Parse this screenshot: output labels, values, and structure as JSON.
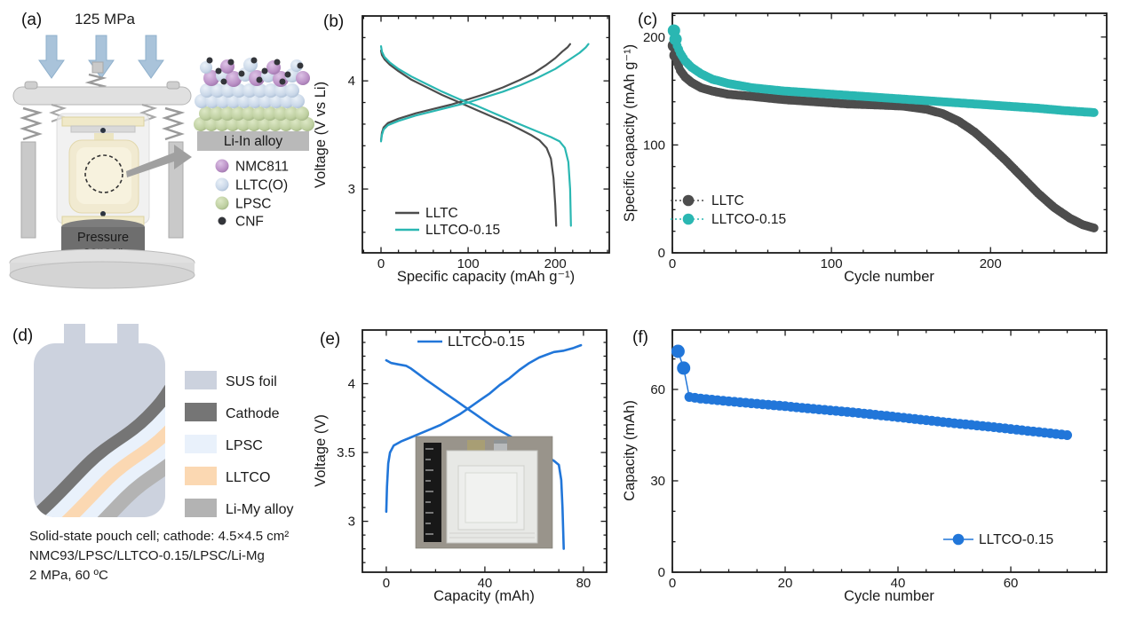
{
  "panels": {
    "a": {
      "label": "(a)",
      "pressure": "125 MPa",
      "sensor_line1": "Pressure",
      "sensor_line2": "sensor",
      "alloy_bar": "Li-In alloy",
      "legend": [
        {
          "label": "NMC811",
          "color": "#b98fc5"
        },
        {
          "label": "LLTC(O)",
          "color": "#c9d7e8"
        },
        {
          "label": "LPSC",
          "color": "#becfa0"
        },
        {
          "label": "CNF",
          "color": "#33353a"
        }
      ]
    },
    "b": {
      "label": "(b)"
    },
    "c": {
      "label": "(c)"
    },
    "d": {
      "label": "(d)",
      "legend": [
        {
          "label": "SUS foil",
          "color": "#ccd2de"
        },
        {
          "label": "Cathode",
          "color": "#757575"
        },
        {
          "label": "LPSC",
          "color": "#e9f1fb"
        },
        {
          "label": "LLTCO",
          "color": "#fbd8b2"
        },
        {
          "label": "Li-My alloy",
          "color": "#b3b3b3"
        }
      ],
      "caption": [
        "Solid-state pouch cell; cathode: 4.5×4.5 cm²",
        "NMC93/LPSC/LLTCO-0.15/LPSC/Li-Mg",
        "2 MPa, 60 ºC"
      ]
    },
    "e": {
      "label": "(e)"
    },
    "f": {
      "label": "(f)"
    }
  },
  "chart_data": {
    "b": {
      "type": "line",
      "xlabel": "Specific capacity (mAh g⁻¹)",
      "ylabel": "Voltage (V vs Li)",
      "xlim": [
        -21.4,
        262
      ],
      "ylim": [
        2.41,
        4.6
      ],
      "xticks": [
        0,
        100,
        200
      ],
      "yticks": [
        3,
        4
      ],
      "xminor": 20,
      "yminor": 0.2,
      "grid": false,
      "legend_position": "lower-left",
      "legend": [
        "LLTC",
        "LLTCO-0.15"
      ],
      "legend_colors": [
        "#4d4d4d",
        "#2ab7b2"
      ],
      "series": [
        {
          "name": "LLTC charge",
          "color": "#4d4d4d",
          "points": [
            [
              0,
              3.45
            ],
            [
              1,
              3.52
            ],
            [
              3,
              3.57
            ],
            [
              8,
              3.61
            ],
            [
              20,
              3.65
            ],
            [
              40,
              3.7
            ],
            [
              60,
              3.74
            ],
            [
              80,
              3.78
            ],
            [
              100,
              3.83
            ],
            [
              120,
              3.88
            ],
            [
              140,
              3.94
            ],
            [
              160,
              4.01
            ],
            [
              175,
              4.07
            ],
            [
              190,
              4.15
            ],
            [
              200,
              4.21
            ],
            [
              208,
              4.27
            ],
            [
              214,
              4.31
            ],
            [
              217,
              4.34
            ]
          ]
        },
        {
          "name": "LLTC discharge",
          "color": "#4d4d4d",
          "points": [
            [
              0,
              4.28
            ],
            [
              1,
              4.24
            ],
            [
              4,
              4.2
            ],
            [
              10,
              4.15
            ],
            [
              20,
              4.09
            ],
            [
              35,
              4.01
            ],
            [
              50,
              3.95
            ],
            [
              70,
              3.87
            ],
            [
              90,
              3.8
            ],
            [
              110,
              3.73
            ],
            [
              130,
              3.66
            ],
            [
              145,
              3.61
            ],
            [
              160,
              3.55
            ],
            [
              172,
              3.5
            ],
            [
              182,
              3.45
            ],
            [
              190,
              3.38
            ],
            [
              195,
              3.28
            ],
            [
              198,
              3.1
            ],
            [
              200,
              2.85
            ],
            [
              201,
              2.66
            ]
          ]
        },
        {
          "name": "LLTCO-0.15 charge",
          "color": "#2ab7b2",
          "points": [
            [
              0,
              3.44
            ],
            [
              1,
              3.5
            ],
            [
              3,
              3.55
            ],
            [
              8,
              3.59
            ],
            [
              20,
              3.63
            ],
            [
              40,
              3.68
            ],
            [
              60,
              3.72
            ],
            [
              80,
              3.76
            ],
            [
              100,
              3.8
            ],
            [
              120,
              3.85
            ],
            [
              140,
              3.9
            ],
            [
              160,
              3.96
            ],
            [
              180,
              4.03
            ],
            [
              200,
              4.11
            ],
            [
              215,
              4.19
            ],
            [
              228,
              4.26
            ],
            [
              235,
              4.31
            ],
            [
              238,
              4.34
            ]
          ]
        },
        {
          "name": "LLTCO-0.15 discharge",
          "color": "#2ab7b2",
          "points": [
            [
              0,
              4.32
            ],
            [
              1,
              4.27
            ],
            [
              4,
              4.22
            ],
            [
              10,
              4.17
            ],
            [
              20,
              4.11
            ],
            [
              35,
              4.04
            ],
            [
              50,
              3.98
            ],
            [
              70,
              3.9
            ],
            [
              90,
              3.83
            ],
            [
              110,
              3.77
            ],
            [
              130,
              3.7
            ],
            [
              150,
              3.63
            ],
            [
              165,
              3.58
            ],
            [
              180,
              3.53
            ],
            [
              195,
              3.48
            ],
            [
              205,
              3.44
            ],
            [
              211,
              3.38
            ],
            [
              215,
              3.25
            ],
            [
              217,
              3.0
            ],
            [
              218,
              2.66
            ]
          ]
        }
      ]
    },
    "c": {
      "type": "scatter",
      "xlabel": "Cycle number",
      "ylabel": "Specific capacity (mAh g⁻¹)",
      "xlim": [
        0,
        273
      ],
      "ylim": [
        0,
        222
      ],
      "xticks": [
        0,
        100,
        200
      ],
      "yticks": [
        0,
        100,
        200
      ],
      "xminor": 20,
      "yminor": 20,
      "grid": false,
      "legend_position": "lower-left",
      "series": [
        {
          "name": "LLTC",
          "color": "#4d4d4d",
          "marker": 5,
          "marker_first": 7,
          "first_n": 2,
          "anchors": [
            [
              1,
              192
            ],
            [
              2,
              183
            ],
            [
              3,
              176
            ],
            [
              5,
              169
            ],
            [
              8,
              163
            ],
            [
              12,
              158
            ],
            [
              18,
              153
            ],
            [
              25,
              150
            ],
            [
              35,
              147
            ],
            [
              50,
              145
            ],
            [
              70,
              142
            ],
            [
              90,
              140
            ],
            [
              110,
              138
            ],
            [
              130,
              137
            ],
            [
              145,
              136
            ],
            [
              160,
              133
            ],
            [
              170,
              129
            ],
            [
              180,
              122
            ],
            [
              190,
              112
            ],
            [
              200,
              99
            ],
            [
              210,
              85
            ],
            [
              220,
              70
            ],
            [
              230,
              55
            ],
            [
              240,
              42
            ],
            [
              250,
              32
            ],
            [
              258,
              26
            ],
            [
              265,
              23
            ]
          ]
        },
        {
          "name": "LLTCO-0.15",
          "color": "#2ab7b2",
          "marker": 5,
          "marker_first": 7,
          "first_n": 2,
          "anchors": [
            [
              1,
              206
            ],
            [
              2,
              198
            ],
            [
              3,
              192
            ],
            [
              5,
              185
            ],
            [
              8,
              178
            ],
            [
              12,
              172
            ],
            [
              18,
              166
            ],
            [
              25,
              161
            ],
            [
              35,
              157
            ],
            [
              50,
              153
            ],
            [
              70,
              150
            ],
            [
              90,
              148
            ],
            [
              110,
              146
            ],
            [
              130,
              144
            ],
            [
              150,
              142
            ],
            [
              170,
              140
            ],
            [
              190,
              138
            ],
            [
              210,
              136
            ],
            [
              230,
              134
            ],
            [
              245,
              132
            ],
            [
              255,
              131
            ],
            [
              265,
              130
            ]
          ]
        }
      ]
    },
    "e": {
      "type": "line",
      "xlabel": "Capacity (mAh)",
      "ylabel": "Voltage (V)",
      "xlim": [
        -9.7,
        89.4
      ],
      "ylim": [
        2.63,
        4.39
      ],
      "xticks": [
        0,
        40,
        80
      ],
      "yticks": [
        3,
        3.5,
        4
      ],
      "xminor": 10,
      "yminor": 0.1,
      "grid": false,
      "legend_position": "top-center",
      "legend": [
        "LLTCO-0.15"
      ],
      "legend_colors": [
        "#2176d9"
      ],
      "series": [
        {
          "name": "LLTCO-0.15 charge",
          "color": "#2176d9",
          "points": [
            [
              0,
              3.07
            ],
            [
              0.3,
              3.25
            ],
            [
              0.8,
              3.42
            ],
            [
              1.5,
              3.5
            ],
            [
              3,
              3.55
            ],
            [
              6,
              3.58
            ],
            [
              10,
              3.61
            ],
            [
              14,
              3.64
            ],
            [
              18,
              3.67
            ],
            [
              22,
              3.7
            ],
            [
              26,
              3.74
            ],
            [
              30,
              3.78
            ],
            [
              34,
              3.83
            ],
            [
              38,
              3.88
            ],
            [
              42,
              3.93
            ],
            [
              46,
              3.99
            ],
            [
              50,
              4.04
            ],
            [
              54,
              4.1
            ],
            [
              58,
              4.15
            ],
            [
              62,
              4.19
            ],
            [
              65,
              4.21
            ],
            [
              68,
              4.23
            ],
            [
              72,
              4.24
            ],
            [
              76,
              4.26
            ],
            [
              79,
              4.28
            ]
          ]
        },
        {
          "name": "LLTCO-0.15 discharge",
          "color": "#2176d9",
          "points": [
            [
              0,
              4.17
            ],
            [
              2,
              4.15
            ],
            [
              5,
              4.14
            ],
            [
              8,
              4.13
            ],
            [
              10,
              4.11
            ],
            [
              13,
              4.07
            ],
            [
              16,
              4.03
            ],
            [
              20,
              3.98
            ],
            [
              24,
              3.93
            ],
            [
              28,
              3.88
            ],
            [
              32,
              3.83
            ],
            [
              36,
              3.78
            ],
            [
              40,
              3.73
            ],
            [
              44,
              3.68
            ],
            [
              48,
              3.64
            ],
            [
              52,
              3.6
            ],
            [
              56,
              3.56
            ],
            [
              60,
              3.52
            ],
            [
              63,
              3.49
            ],
            [
              66,
              3.46
            ],
            [
              68,
              3.44
            ],
            [
              70,
              3.41
            ],
            [
              71,
              3.3
            ],
            [
              71.5,
              3.1
            ],
            [
              72,
              2.8
            ]
          ]
        }
      ]
    },
    "f": {
      "type": "scatter",
      "xlabel": "Cycle number",
      "ylabel": "Capacity (mAh)",
      "xlim": [
        0,
        77
      ],
      "ylim": [
        0,
        79.5
      ],
      "xticks": [
        0,
        20,
        40,
        60
      ],
      "yticks": [
        0,
        30,
        60
      ],
      "xminor": 5,
      "yminor": 10,
      "grid": false,
      "legend_position": "lower-right",
      "series": [
        {
          "name": "LLTCO-0.15",
          "color": "#2176d9",
          "marker": 5.5,
          "marker_first": 7.5,
          "first_n": 2,
          "line": true,
          "anchors": [
            [
              1,
              72.5
            ],
            [
              2,
              67
            ],
            [
              3,
              57.5
            ],
            [
              5,
              57
            ],
            [
              10,
              56.1
            ],
            [
              15,
              55.3
            ],
            [
              20,
              54.5
            ],
            [
              25,
              53.6
            ],
            [
              30,
              52.8
            ],
            [
              35,
              51.9
            ],
            [
              40,
              50.9
            ],
            [
              45,
              49.9
            ],
            [
              50,
              48.9
            ],
            [
              55,
              48
            ],
            [
              60,
              47
            ],
            [
              65,
              46
            ],
            [
              70,
              45
            ]
          ]
        }
      ]
    }
  }
}
